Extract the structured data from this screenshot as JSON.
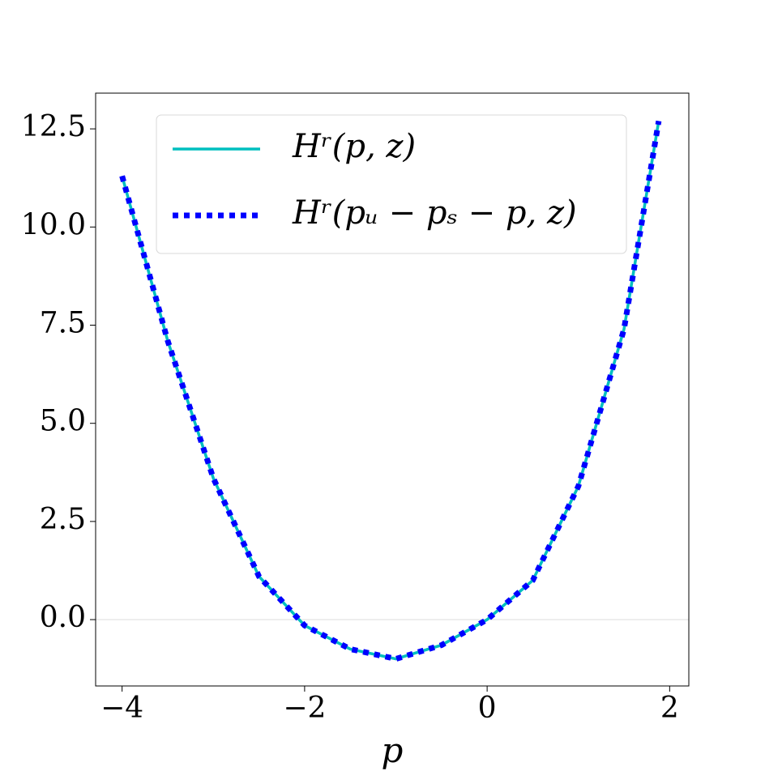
{
  "chart_data": {
    "type": "line",
    "xlabel": "p",
    "x": [
      -4,
      -3.5,
      -3,
      -2.5,
      -2,
      -1.5,
      -1,
      -0.5,
      0,
      0.5,
      1,
      1.5,
      1.88
    ],
    "series": [
      {
        "name": "Hʳ(p, z)",
        "color": "#00bfbf",
        "style": "solid",
        "values": [
          11.3,
          7.1,
          3.6,
          1.1,
          -0.15,
          -0.75,
          -1.0,
          -0.65,
          0,
          1.0,
          3.4,
          7.4,
          12.7
        ]
      },
      {
        "name": "Hʳ(pᵤ − pₛ − p, z)",
        "color": "#0000ff",
        "style": "dotted",
        "values": [
          11.3,
          7.1,
          3.6,
          1.1,
          -0.15,
          -0.75,
          -1.0,
          -0.65,
          0,
          1.0,
          3.4,
          7.4,
          12.7
        ]
      }
    ],
    "hlines": [
      0
    ],
    "xlim": [
      -4.29,
      2.21
    ],
    "ylim": [
      -1.69,
      13.41
    ],
    "xticks": [
      {
        "value": -4,
        "label": "−4"
      },
      {
        "value": -2,
        "label": "−2"
      },
      0,
      2
    ],
    "yticks": [
      {
        "value": 0,
        "label": "0.0"
      },
      2.5,
      {
        "value": 5,
        "label": "5.0"
      },
      7.5,
      {
        "value": 10,
        "label": "10.0"
      },
      12.5
    ],
    "legend": "upper center"
  }
}
